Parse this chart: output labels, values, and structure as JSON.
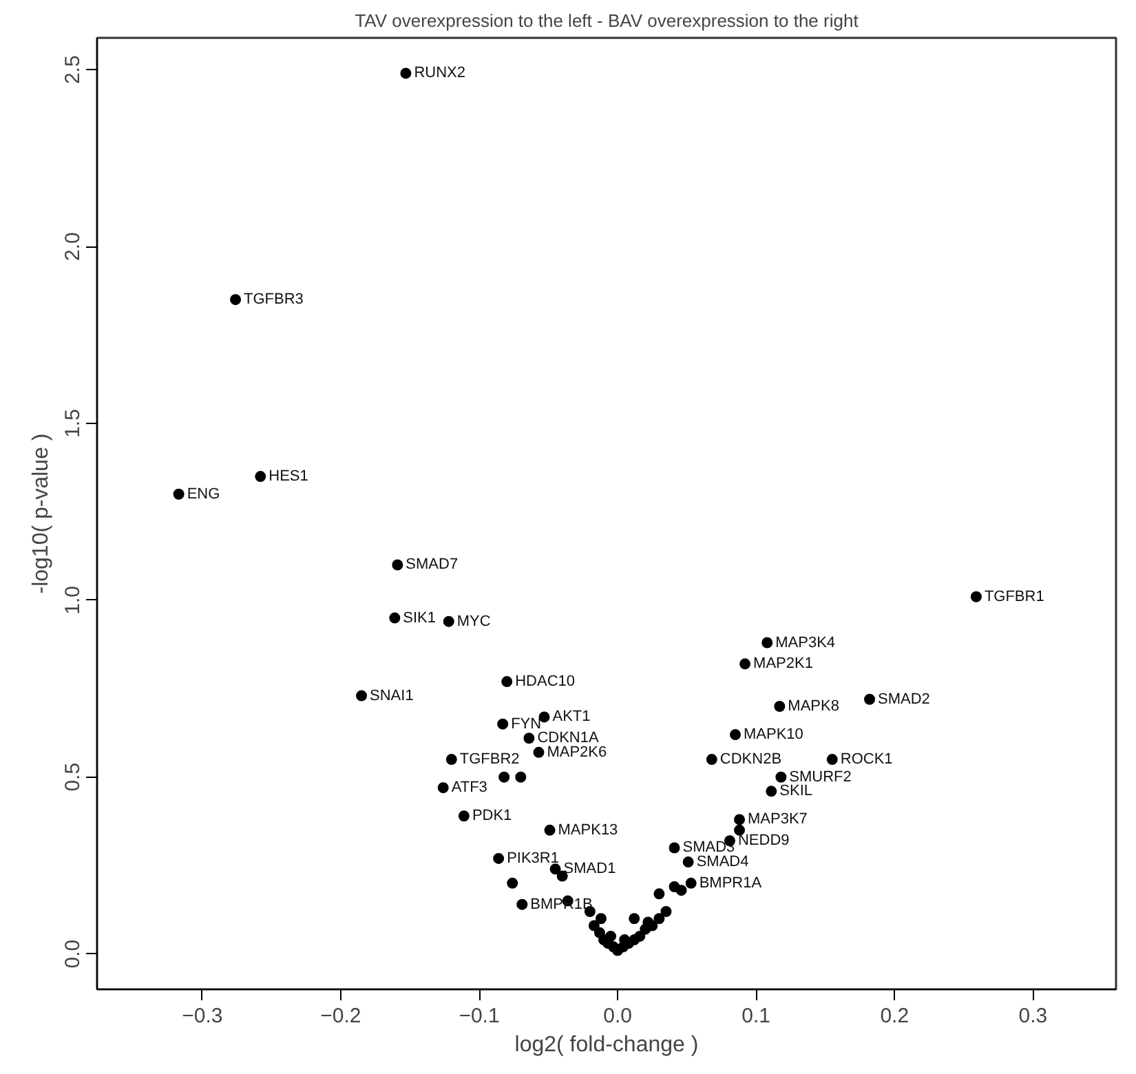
{
  "chart_data": {
    "type": "scatter",
    "title": "TAV overexpression to the left - BAV overexpression to the right",
    "xlabel": "log2( fold-change )",
    "ylabel": "-log10( p-value )",
    "xlim": [
      -0.376,
      0.36
    ],
    "ylim": [
      -0.1,
      2.59
    ],
    "xticks": [
      -0.3,
      -0.2,
      -0.1,
      {
        "value": 0,
        "label": "0.0"
      },
      0.1,
      0.2,
      0.3
    ],
    "yticks": [
      {
        "value": 0,
        "label": "0.0"
      },
      0.5,
      {
        "value": 1,
        "label": "1.0"
      },
      1.5,
      {
        "value": 2,
        "label": "2.0"
      },
      2.5
    ],
    "grid": false,
    "marker": "circle",
    "series": [
      {
        "color": "#000000",
        "x": [
          -0.153,
          -0.276,
          -0.258,
          -0.317,
          -0.159,
          -0.161,
          -0.122,
          0.259,
          -0.185,
          -0.08,
          -0.083,
          -0.053,
          -0.064,
          -0.057,
          -0.12,
          -0.082,
          -0.07,
          -0.126,
          -0.111,
          -0.049,
          -0.086,
          -0.045,
          -0.04,
          -0.076,
          -0.069,
          -0.036,
          0.108,
          0.092,
          0.117,
          0.182,
          0.085,
          0.068,
          0.155,
          0.118,
          0.111,
          0.088,
          0.088,
          0.081,
          0.041,
          0.051,
          0.041,
          0.046,
          0.053,
          -0.02,
          -0.017,
          -0.013,
          -0.01,
          -0.007,
          -0.003,
          0.0,
          0.004,
          0.008,
          0.012,
          0.016,
          0.02,
          0.025,
          0.03,
          0.035,
          0.03,
          0.012,
          -0.012,
          -0.005,
          0.005,
          0.022
        ],
        "values": [
          2.49,
          1.85,
          1.35,
          1.3,
          1.1,
          0.95,
          0.94,
          1.01,
          0.73,
          0.77,
          0.65,
          0.67,
          0.61,
          0.57,
          0.55,
          0.5,
          0.5,
          0.47,
          0.39,
          0.35,
          0.27,
          0.24,
          0.22,
          0.2,
          0.14,
          0.15,
          0.88,
          0.82,
          0.7,
          0.72,
          0.62,
          0.55,
          0.55,
          0.5,
          0.46,
          0.38,
          0.35,
          0.32,
          0.3,
          0.26,
          0.19,
          0.18,
          0.2,
          0.12,
          0.08,
          0.06,
          0.04,
          0.03,
          0.02,
          0.01,
          0.02,
          0.03,
          0.04,
          0.05,
          0.07,
          0.08,
          0.1,
          0.12,
          0.17,
          0.1,
          0.1,
          0.05,
          0.04,
          0.09
        ]
      }
    ],
    "annotations": [
      {
        "text": "RUNX2",
        "x": -0.153,
        "y": 2.49
      },
      {
        "text": "TGFBR3",
        "x": -0.276,
        "y": 1.85
      },
      {
        "text": "HES1",
        "x": -0.258,
        "y": 1.35
      },
      {
        "text": "ENG",
        "x": -0.317,
        "y": 1.3
      },
      {
        "text": "SMAD7",
        "x": -0.159,
        "y": 1.1
      },
      {
        "text": "SIK1",
        "x": -0.161,
        "y": 0.95
      },
      {
        "text": "MYC",
        "x": -0.122,
        "y": 0.94
      },
      {
        "text": "TGFBR1",
        "x": 0.259,
        "y": 1.01
      },
      {
        "text": "SNAI1",
        "x": -0.185,
        "y": 0.73
      },
      {
        "text": "HDAC10",
        "x": -0.08,
        "y": 0.77
      },
      {
        "text": "FYN",
        "x": -0.083,
        "y": 0.65
      },
      {
        "text": "AKT1",
        "x": -0.053,
        "y": 0.67
      },
      {
        "text": "CDKN1A",
        "x": -0.064,
        "y": 0.61
      },
      {
        "text": "MAP2K6",
        "x": -0.057,
        "y": 0.57
      },
      {
        "text": "TGFBR2",
        "x": -0.12,
        "y": 0.55
      },
      {
        "text": "ATF3",
        "x": -0.126,
        "y": 0.47
      },
      {
        "text": "PDK1",
        "x": -0.111,
        "y": 0.39
      },
      {
        "text": "MAPK13",
        "x": -0.049,
        "y": 0.35
      },
      {
        "text": "PIK3R1",
        "x": -0.086,
        "y": 0.27
      },
      {
        "text": "SMAD1",
        "x": -0.045,
        "y": 0.24
      },
      {
        "text": "BMPR1B",
        "x": -0.069,
        "y": 0.14
      },
      {
        "text": "MAP3K4",
        "x": 0.108,
        "y": 0.88
      },
      {
        "text": "MAP2K1",
        "x": 0.092,
        "y": 0.82
      },
      {
        "text": "MAPK8",
        "x": 0.117,
        "y": 0.7
      },
      {
        "text": "SMAD2",
        "x": 0.182,
        "y": 0.72
      },
      {
        "text": "MAPK10",
        "x": 0.085,
        "y": 0.62
      },
      {
        "text": "CDKN2B",
        "x": 0.068,
        "y": 0.55
      },
      {
        "text": "ROCK1",
        "x": 0.155,
        "y": 0.55
      },
      {
        "text": "SMURF2",
        "x": 0.118,
        "y": 0.5
      },
      {
        "text": "SKIL",
        "x": 0.111,
        "y": 0.46
      },
      {
        "text": "MAP3K7",
        "x": 0.088,
        "y": 0.38
      },
      {
        "text": "NEDD9",
        "x": 0.081,
        "y": 0.32
      },
      {
        "text": "SMAD3",
        "x": 0.041,
        "y": 0.3
      },
      {
        "text": "SMAD4",
        "x": 0.051,
        "y": 0.26
      },
      {
        "text": "BMPR1A",
        "x": 0.053,
        "y": 0.2
      }
    ]
  }
}
